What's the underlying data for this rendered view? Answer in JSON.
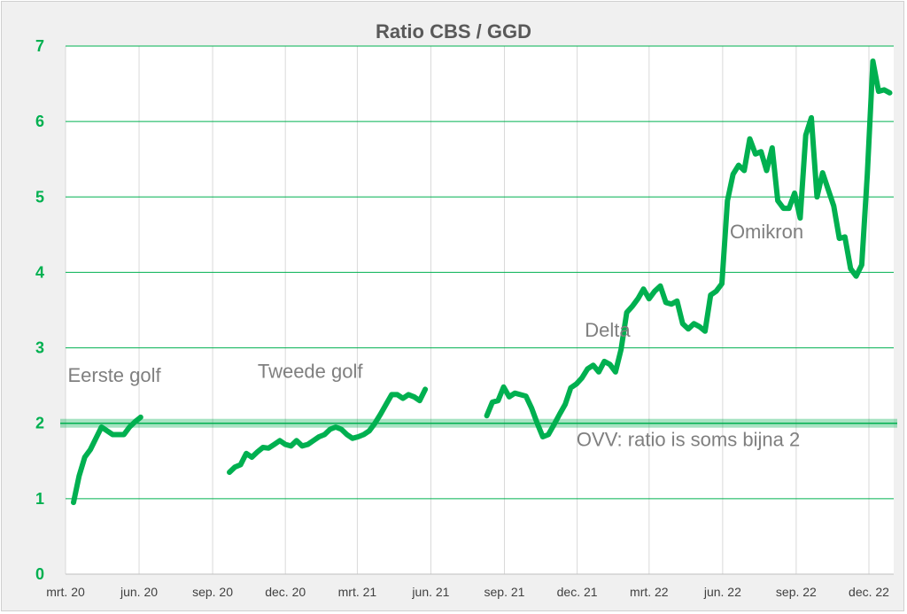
{
  "chart_data": {
    "type": "line",
    "title": "Ratio CBS / GGD",
    "xlabel": "",
    "ylabel": "",
    "ylim": [
      0,
      7
    ],
    "yticks": [
      0,
      1,
      2,
      3,
      4,
      5,
      6,
      7
    ],
    "xlim": [
      "2020-03-01",
      "2023-01-01"
    ],
    "grid": {
      "horizontal": true,
      "vertical": true
    },
    "x_tick_labels": [
      "mrt. 20",
      "jun. 20",
      "sep. 20",
      "dec. 20",
      "mrt. 21",
      "jun. 21",
      "sep. 21",
      "dec. 21",
      "mrt. 22",
      "jun. 22",
      "sep. 22",
      "dec. 22"
    ],
    "x_tick_dates": [
      "2020-03-01",
      "2020-06-01",
      "2020-09-01",
      "2020-12-01",
      "2021-03-01",
      "2021-06-01",
      "2021-09-01",
      "2021-12-01",
      "2022-03-01",
      "2022-06-01",
      "2022-09-01",
      "2022-12-01"
    ],
    "series": [
      {
        "color": "#00b050",
        "segments": [
          {
            "x": [
              "2020-03-11",
              "2020-03-18",
              "2020-03-25",
              "2020-04-01",
              "2020-04-08",
              "2020-04-15",
              "2020-04-22",
              "2020-04-29",
              "2020-05-06",
              "2020-05-13",
              "2020-05-20",
              "2020-05-27",
              "2020-06-03"
            ],
            "y": [
              0.95,
              1.3,
              1.55,
              1.65,
              1.8,
              1.95,
              1.9,
              1.85,
              1.85,
              1.85,
              1.95,
              2.02,
              2.08
            ]
          },
          {
            "x": [
              "2020-09-22",
              "2020-09-29",
              "2020-10-06",
              "2020-10-13",
              "2020-10-20",
              "2020-10-27",
              "2020-11-03",
              "2020-11-10",
              "2020-11-17",
              "2020-11-24",
              "2020-12-01",
              "2020-12-08",
              "2020-12-15",
              "2020-12-22",
              "2020-12-29",
              "2021-01-05",
              "2021-01-12",
              "2021-01-19",
              "2021-01-26",
              "2021-02-02",
              "2021-02-09",
              "2021-02-16",
              "2021-02-23",
              "2021-03-02",
              "2021-03-09",
              "2021-03-16",
              "2021-03-23",
              "2021-03-30",
              "2021-04-06",
              "2021-04-13",
              "2021-04-20",
              "2021-04-27",
              "2021-05-04",
              "2021-05-11",
              "2021-05-18",
              "2021-05-25"
            ],
            "y": [
              1.35,
              1.42,
              1.45,
              1.6,
              1.55,
              1.62,
              1.68,
              1.67,
              1.72,
              1.77,
              1.72,
              1.7,
              1.77,
              1.7,
              1.72,
              1.77,
              1.82,
              1.85,
              1.92,
              1.95,
              1.92,
              1.85,
              1.8,
              1.82,
              1.85,
              1.9,
              2.0,
              2.12,
              2.25,
              2.38,
              2.38,
              2.33,
              2.38,
              2.35,
              2.3,
              2.45
            ]
          },
          {
            "x": [
              "2021-08-10",
              "2021-08-17",
              "2021-08-24",
              "2021-08-31",
              "2021-09-07",
              "2021-09-14",
              "2021-09-21",
              "2021-09-28",
              "2021-10-05",
              "2021-10-12",
              "2021-10-19",
              "2021-10-26",
              "2021-11-02",
              "2021-11-09",
              "2021-11-16",
              "2021-11-23",
              "2021-11-30",
              "2021-12-07",
              "2021-12-14",
              "2021-12-21",
              "2021-12-28",
              "2022-01-04",
              "2022-01-11",
              "2022-01-18",
              "2022-01-25",
              "2022-02-01",
              "2022-02-08",
              "2022-02-15",
              "2022-02-22",
              "2022-03-01",
              "2022-03-08",
              "2022-03-15",
              "2022-03-22",
              "2022-03-29",
              "2022-04-05",
              "2022-04-12",
              "2022-04-19",
              "2022-04-26",
              "2022-05-03",
              "2022-05-10",
              "2022-05-17",
              "2022-05-24",
              "2022-05-31",
              "2022-06-07",
              "2022-06-14",
              "2022-06-21",
              "2022-06-28",
              "2022-07-05",
              "2022-07-12",
              "2022-07-19",
              "2022-07-26",
              "2022-08-02",
              "2022-08-09",
              "2022-08-16",
              "2022-08-23",
              "2022-08-30",
              "2022-09-06",
              "2022-09-13",
              "2022-09-20",
              "2022-09-27",
              "2022-10-04",
              "2022-10-11",
              "2022-10-18",
              "2022-10-25",
              "2022-11-01",
              "2022-11-08",
              "2022-11-15",
              "2022-11-22",
              "2022-11-29",
              "2022-12-06",
              "2022-12-13",
              "2022-12-20",
              "2022-12-27"
            ],
            "y": [
              2.1,
              2.28,
              2.3,
              2.48,
              2.35,
              2.4,
              2.38,
              2.36,
              2.2,
              2.0,
              1.82,
              1.85,
              1.98,
              2.12,
              2.25,
              2.47,
              2.52,
              2.6,
              2.72,
              2.77,
              2.68,
              2.82,
              2.78,
              2.68,
              2.98,
              3.47,
              3.55,
              3.65,
              3.78,
              3.65,
              3.75,
              3.82,
              3.6,
              3.58,
              3.62,
              3.32,
              3.25,
              3.32,
              3.28,
              3.22,
              3.7,
              3.75,
              3.85,
              4.95,
              5.3,
              5.42,
              5.35,
              5.77,
              5.57,
              5.6,
              5.35,
              5.65,
              4.95,
              4.85,
              4.85,
              5.05,
              4.72,
              5.82,
              6.05,
              5.0,
              5.32,
              5.1,
              4.88,
              4.45,
              4.47,
              4.05,
              3.95,
              4.1,
              5.3,
              6.8,
              6.4,
              6.42,
              6.38
            ]
          }
        ]
      }
    ],
    "reference_band": {
      "y": 2.0,
      "color": "#00b050"
    },
    "annotations": [
      {
        "text": "Eerste golf",
        "x": "2020-05-01",
        "y": 2.55
      },
      {
        "text": "Tweede golf",
        "x": "2021-01-01",
        "y": 2.6
      },
      {
        "text": "Delta",
        "x": "2022-01-08",
        "y": 3.15
      },
      {
        "text": "Omikron",
        "x": "2022-07-26",
        "y": 4.45
      },
      {
        "text": "OVV: ratio is soms bijna 2",
        "x": "2022-04-19",
        "y": 1.7
      }
    ]
  }
}
